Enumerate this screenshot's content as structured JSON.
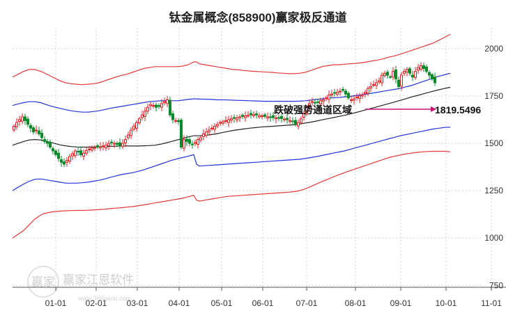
{
  "chart_data": {
    "type": "candlestick",
    "title": "钛金属概念(858900)赢家极反通道",
    "x_ticks": [
      "01-01",
      "02-01",
      "03-01",
      "04-01",
      "05-01",
      "06-01",
      "07-01",
      "08-01",
      "09-01",
      "10-01",
      "11-01"
    ],
    "y_ticks": [
      750,
      1000,
      1250,
      1500,
      1750,
      2000
    ],
    "ylim": [
      740,
      2110
    ],
    "grid": true,
    "colors": {
      "up": "#e02020",
      "down": "#0a8a2a",
      "outer_band": "#e53935",
      "inner_band": "#2233dd",
      "mid_line": "#222222",
      "arrow": "#cc1177"
    },
    "band_points_x": [
      0,
      8,
      16,
      24,
      32,
      40,
      44,
      52,
      60,
      68,
      76,
      84,
      92,
      100,
      108,
      116,
      124,
      132,
      140,
      148,
      156,
      164,
      172,
      180,
      188,
      196,
      204,
      212,
      220,
      228,
      236,
      244,
      252,
      260,
      264,
      268,
      276,
      284,
      292,
      300,
      308,
      316,
      324,
      332,
      340,
      348,
      356,
      364,
      372,
      380,
      388,
      396,
      404,
      412,
      420,
      428,
      436,
      444,
      452,
      460,
      468,
      476,
      484,
      492,
      500,
      508,
      516,
      524,
      532,
      540,
      548,
      556,
      564,
      572,
      580,
      588,
      596,
      604,
      612,
      620,
      628
    ],
    "series": [
      {
        "name": "",
        "role": "outer_upper",
        "values": [
          1850,
          1865,
          1880,
          1890,
          1890,
          1880,
          1875,
          1860,
          1845,
          1830,
          1820,
          1815,
          1812,
          1810,
          1812,
          1815,
          1820,
          1830,
          1840,
          1850,
          1858,
          1865,
          1875,
          1885,
          1895,
          1900,
          1905,
          1905,
          1905,
          1905,
          1905,
          1908,
          1915,
          1930,
          1930,
          1920,
          1915,
          1910,
          1905,
          1900,
          1895,
          1890,
          1888,
          1885,
          1882,
          1880,
          1878,
          1876,
          1875,
          1872,
          1870,
          1868,
          1868,
          1870,
          1875,
          1885,
          1895,
          1905,
          1910,
          1915,
          1915,
          1918,
          1920,
          1922,
          1925,
          1930,
          1935,
          1940,
          1947,
          1955,
          1962,
          1970,
          1980,
          1990,
          2000,
          2010,
          2020,
          2030,
          2045,
          2060,
          2075
        ]
      },
      {
        "name": "",
        "role": "inner_upper",
        "values": [
          1700,
          1708,
          1715,
          1720,
          1720,
          1715,
          1710,
          1700,
          1692,
          1685,
          1678,
          1672,
          1668,
          1665,
          1665,
          1668,
          1672,
          1678,
          1685,
          1690,
          1695,
          1700,
          1705,
          1710,
          1715,
          1720,
          1722,
          1725,
          1725,
          1725,
          1725,
          1728,
          1732,
          1735,
          1735,
          1734,
          1733,
          1732,
          1730,
          1730,
          1729,
          1728,
          1727,
          1726,
          1725,
          1724,
          1723,
          1722,
          1722,
          1722,
          1722,
          1722,
          1722,
          1723,
          1725,
          1728,
          1732,
          1735,
          1738,
          1740,
          1742,
          1745,
          1748,
          1752,
          1756,
          1760,
          1765,
          1770,
          1775,
          1780,
          1785,
          1790,
          1798,
          1805,
          1815,
          1825,
          1835,
          1845,
          1855,
          1862,
          1870
        ]
      },
      {
        "name": "",
        "role": "mid",
        "values": [
          1490,
          1500,
          1510,
          1518,
          1520,
          1518,
          1515,
          1508,
          1500,
          1492,
          1487,
          1483,
          1481,
          1480,
          1480,
          1481,
          1482,
          1483,
          1484,
          1485,
          1486,
          1486,
          1486,
          1486,
          1487,
          1488,
          1490,
          1495,
          1502,
          1510,
          1518,
          1526,
          1534,
          1540,
          1540,
          1540,
          1542,
          1546,
          1550,
          1556,
          1562,
          1568,
          1572,
          1576,
          1580,
          1583,
          1586,
          1588,
          1590,
          1592,
          1594,
          1596,
          1598,
          1602,
          1607,
          1612,
          1618,
          1624,
          1630,
          1636,
          1642,
          1648,
          1655,
          1662,
          1670,
          1678,
          1686,
          1694,
          1702,
          1710,
          1718,
          1727,
          1735,
          1744,
          1752,
          1760,
          1768,
          1776,
          1783,
          1790,
          1796
        ]
      },
      {
        "name": "",
        "role": "inner_lower",
        "values": [
          1250,
          1268,
          1285,
          1300,
          1310,
          1312,
          1310,
          1305,
          1300,
          1295,
          1290,
          1290,
          1290,
          1292,
          1295,
          1300,
          1305,
          1312,
          1320,
          1328,
          1335,
          1340,
          1345,
          1352,
          1360,
          1370,
          1380,
          1390,
          1400,
          1410,
          1418,
          1425,
          1432,
          1440,
          1390,
          1380,
          1382,
          1384,
          1386,
          1388,
          1390,
          1392,
          1394,
          1396,
          1398,
          1400,
          1402,
          1404,
          1406,
          1408,
          1410,
          1412,
          1414,
          1416,
          1420,
          1425,
          1430,
          1436,
          1442,
          1448,
          1454,
          1460,
          1468,
          1476,
          1484,
          1492,
          1500,
          1508,
          1516,
          1524,
          1532,
          1540,
          1546,
          1552,
          1558,
          1564,
          1570,
          1576,
          1580,
          1584,
          1585
        ]
      },
      {
        "name": "",
        "role": "outer_lower",
        "values": [
          1000,
          1020,
          1040,
          1070,
          1100,
          1120,
          1128,
          1135,
          1140,
          1142,
          1144,
          1145,
          1146,
          1146,
          1147,
          1148,
          1150,
          1152,
          1155,
          1158,
          1160,
          1163,
          1166,
          1170,
          1175,
          1180,
          1185,
          1190,
          1195,
          1200,
          1205,
          1210,
          1218,
          1226,
          1200,
          1195,
          1200,
          1205,
          1210,
          1215,
          1220,
          1222,
          1224,
          1226,
          1228,
          1230,
          1232,
          1234,
          1236,
          1238,
          1240,
          1242,
          1245,
          1250,
          1260,
          1272,
          1285,
          1298,
          1310,
          1322,
          1334,
          1345,
          1355,
          1365,
          1375,
          1385,
          1395,
          1405,
          1415,
          1425,
          1432,
          1438,
          1444,
          1448,
          1452,
          1455,
          1457,
          1458,
          1458,
          1458,
          1455
        ]
      }
    ],
    "candles_x": [
      20,
      24,
      28,
      32,
      36,
      40,
      44,
      48,
      52,
      56,
      60,
      64,
      68,
      72,
      76,
      80,
      84,
      88,
      92,
      96,
      100,
      104,
      108,
      112,
      116,
      120,
      124,
      128,
      132,
      136,
      140,
      144,
      148,
      152,
      156,
      160,
      164,
      168,
      172,
      176,
      180,
      184,
      188,
      192,
      196,
      200,
      204,
      208,
      212,
      216,
      220,
      224,
      228,
      232,
      236,
      240,
      244,
      248,
      252,
      256,
      260,
      264,
      268,
      272,
      276,
      280,
      284,
      288,
      292,
      296,
      300,
      304,
      308,
      312,
      316,
      320,
      324,
      328,
      332,
      336,
      340,
      344,
      348,
      352,
      356,
      360,
      364,
      368,
      372,
      376,
      380,
      384,
      388,
      392,
      396,
      400,
      404,
      408,
      412,
      416,
      420,
      424,
      428,
      432,
      436,
      440,
      444,
      448,
      452,
      456,
      460,
      464,
      468,
      472,
      476,
      480,
      484,
      488,
      492,
      496,
      500,
      504,
      508,
      512,
      516,
      520,
      524,
      528,
      532,
      536,
      540,
      544,
      548,
      552,
      556,
      560,
      564,
      568,
      572,
      576,
      580,
      584,
      588,
      592,
      596,
      600,
      604,
      608,
      612,
      616,
      620,
      624
    ],
    "candles_close": [
      1590,
      1610,
      1625,
      1640,
      1620,
      1600,
      1580,
      1560,
      1570,
      1550,
      1530,
      1510,
      1500,
      1480,
      1460,
      1440,
      1420,
      1400,
      1390,
      1410,
      1430,
      1445,
      1460,
      1455,
      1440,
      1448,
      1462,
      1470,
      1475,
      1478,
      1480,
      1482,
      1486,
      1490,
      1500,
      1505,
      1500,
      1495,
      1490,
      1500,
      1520,
      1545,
      1570,
      1590,
      1610,
      1630,
      1650,
      1670,
      1690,
      1705,
      1700,
      1690,
      1695,
      1710,
      1720,
      1730,
      1650,
      1625,
      1620,
      1615,
      1480,
      1520,
      1510,
      1500,
      1495,
      1505,
      1520,
      1530,
      1550,
      1560,
      1570,
      1580,
      1590,
      1600,
      1610,
      1615,
      1620,
      1625,
      1630,
      1632,
      1635,
      1640,
      1642,
      1645,
      1648,
      1650,
      1652,
      1650,
      1647,
      1645,
      1642,
      1640,
      1638,
      1636,
      1634,
      1632,
      1631,
      1628,
      1625,
      1620,
      1615,
      1600,
      1610,
      1630,
      1660,
      1690,
      1710,
      1720,
      1715,
      1718,
      1725,
      1730,
      1740,
      1755,
      1760,
      1765,
      1770,
      1775,
      1780,
      1760,
      1740,
      1730,
      1735,
      1745,
      1750,
      1755,
      1770,
      1790,
      1800,
      1810,
      1820,
      1830,
      1860,
      1870,
      1860,
      1850,
      1880,
      1840,
      1800,
      1860,
      1880,
      1890,
      1870,
      1850,
      1880,
      1900,
      1910,
      1895,
      1880,
      1860,
      1840,
      1820
    ]
  },
  "annotation": {
    "label": "跌破强势通道区域",
    "value": "1819.5496"
  },
  "watermark": {
    "brand": "赢家江恩软件",
    "url": "www.360gann.com",
    "seal": "赢家"
  }
}
